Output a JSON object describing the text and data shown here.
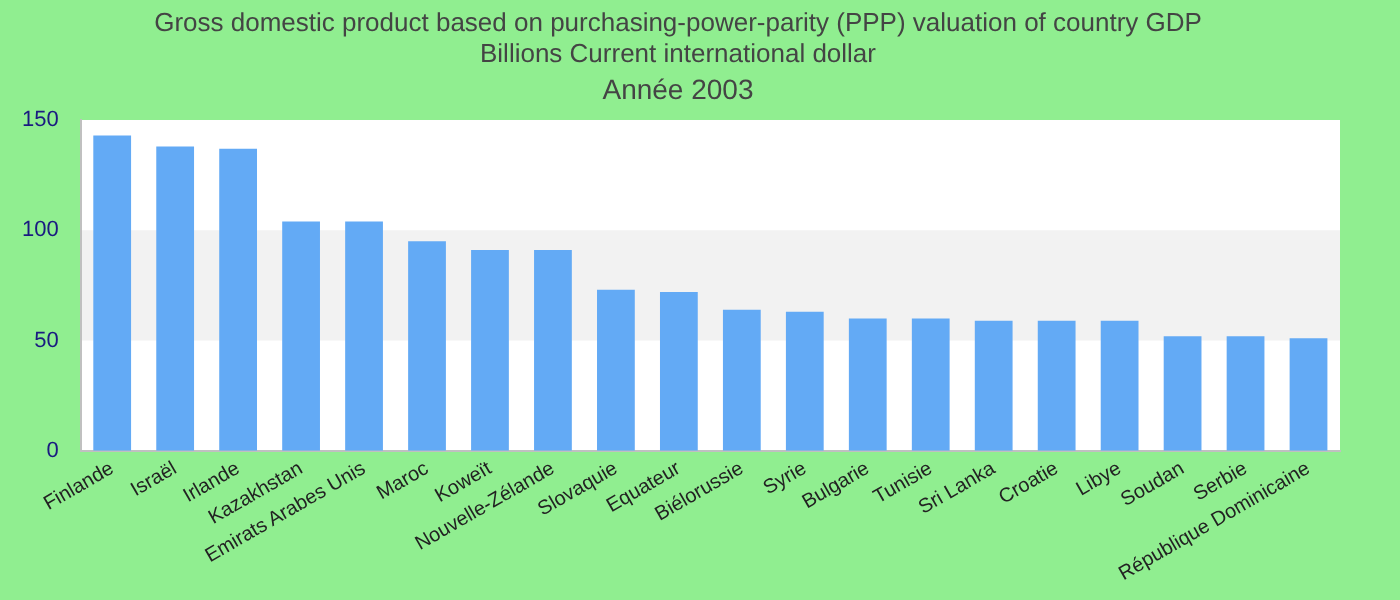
{
  "chart_data": {
    "type": "bar",
    "title": [
      "Gross domestic product based on purchasing-power-parity (PPP) valuation of country GDP",
      "Billions Current international dollar"
    ],
    "subtitle": "Année 2003",
    "categories": [
      "Finlande",
      "Israël",
      "Irlande",
      "Kazakhstan",
      "Emirats Arabes Unis",
      "Maroc",
      "Koweït",
      "Nouvelle-Zélande",
      "Slovaquie",
      "Equateur",
      "Biélorussie",
      "Syrie",
      "Bulgarie",
      "Tunisie",
      "Sri Lanka",
      "Croatie",
      "Libye",
      "Soudan",
      "Serbie",
      "République Dominicaine"
    ],
    "values": [
      143,
      138,
      137,
      104,
      104,
      95,
      91,
      91,
      73,
      72,
      64,
      63,
      60,
      60,
      59,
      59,
      59,
      52,
      52,
      51
    ],
    "color": "#63aaf5",
    "ylim": [
      0,
      150
    ],
    "yticks": [
      0,
      50,
      100,
      150
    ],
    "bands": [
      {
        "axis": "y",
        "from": 50,
        "to": 100,
        "color": "#f2f2f2"
      }
    ]
  }
}
